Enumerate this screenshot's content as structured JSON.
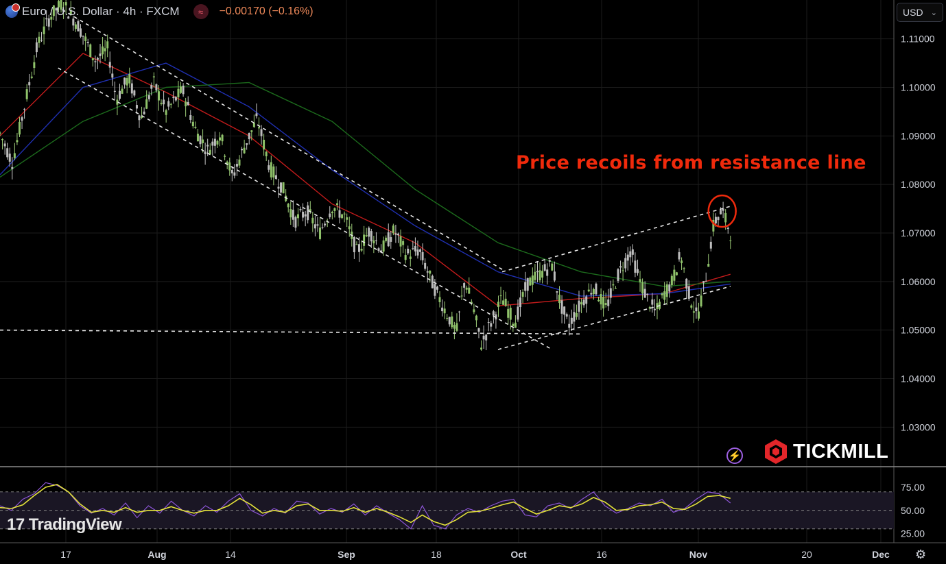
{
  "header": {
    "symbol": "Euro / U.S. Dollar · 4h · FXCM",
    "change": "−0.00170 (−0.16%)"
  },
  "currency_select": {
    "value": "USD"
  },
  "annotation": "Price recoils from resistance line",
  "branding": {
    "tradingview": "TradingView",
    "broker": "TICKMILL"
  },
  "chart_data": {
    "type": "candlestick",
    "symbol": "EUR/USD",
    "timeframe": "4h",
    "price_axis": {
      "ticks": [
        "1.11000",
        "1.10000",
        "1.09000",
        "1.08000",
        "1.07000",
        "1.06000",
        "1.05000",
        "1.04000",
        "1.03000"
      ],
      "range": [
        1.022,
        1.118
      ]
    },
    "time_axis": {
      "labels": [
        "17",
        "Aug",
        "14",
        "Sep",
        "18",
        "Oct",
        "16",
        "Nov",
        "20",
        "Dec"
      ],
      "bold": [
        "Aug",
        "Sep",
        "Oct",
        "Nov",
        "Dec"
      ]
    },
    "price_path": [
      {
        "t": 0,
        "p": 1.0905
      },
      {
        "t": 0.03,
        "p": 1.0845
      },
      {
        "t": 0.06,
        "p": 1.0965
      },
      {
        "t": 0.09,
        "p": 1.1085
      },
      {
        "t": 0.12,
        "p": 1.1145
      },
      {
        "t": 0.15,
        "p": 1.1175
      },
      {
        "t": 0.19,
        "p": 1.1125
      },
      {
        "t": 0.23,
        "p": 1.1055
      },
      {
        "t": 0.26,
        "p": 1.108
      },
      {
        "t": 0.28,
        "p": 1.0975
      },
      {
        "t": 0.31,
        "p": 1.102
      },
      {
        "t": 0.34,
        "p": 1.0935
      },
      {
        "t": 0.37,
        "p": 1.101
      },
      {
        "t": 0.4,
        "p": 1.095
      },
      {
        "t": 0.44,
        "p": 1.0995
      },
      {
        "t": 0.47,
        "p": 1.0915
      },
      {
        "t": 0.5,
        "p": 1.087
      },
      {
        "t": 0.53,
        "p": 1.0905
      },
      {
        "t": 0.56,
        "p": 1.0815
      },
      {
        "t": 0.59,
        "p": 1.088
      },
      {
        "t": 0.62,
        "p": 1.0935
      },
      {
        "t": 0.65,
        "p": 1.0835
      },
      {
        "t": 0.68,
        "p": 1.0795
      },
      {
        "t": 0.71,
        "p": 1.0725
      },
      {
        "t": 0.74,
        "p": 1.0745
      },
      {
        "t": 0.77,
        "p": 1.07
      },
      {
        "t": 0.8,
        "p": 1.0755
      },
      {
        "t": 0.83,
        "p": 1.0735
      },
      {
        "t": 0.86,
        "p": 1.066
      },
      {
        "t": 0.89,
        "p": 1.0705
      },
      {
        "t": 0.92,
        "p": 1.0665
      },
      {
        "t": 0.95,
        "p": 1.0705
      },
      {
        "t": 0.98,
        "p": 1.0655
      },
      {
        "t": 1.01,
        "p": 1.0665
      },
      {
        "t": 1.04,
        "p": 1.06
      },
      {
        "t": 1.07,
        "p": 1.0545
      },
      {
        "t": 1.1,
        "p": 1.0495
      },
      {
        "t": 1.12,
        "p": 1.0605
      },
      {
        "t": 1.14,
        "p": 1.0545
      },
      {
        "t": 1.16,
        "p": 1.047
      },
      {
        "t": 1.18,
        "p": 1.051
      },
      {
        "t": 1.21,
        "p": 1.0565
      },
      {
        "t": 1.24,
        "p": 1.0515
      },
      {
        "t": 1.27,
        "p": 1.0595
      },
      {
        "t": 1.3,
        "p": 1.0615
      },
      {
        "t": 1.33,
        "p": 1.0635
      },
      {
        "t": 1.35,
        "p": 1.0555
      },
      {
        "t": 1.37,
        "p": 1.051
      },
      {
        "t": 1.4,
        "p": 1.0555
      },
      {
        "t": 1.43,
        "p": 1.059
      },
      {
        "t": 1.46,
        "p": 1.0545
      },
      {
        "t": 1.49,
        "p": 1.0615
      },
      {
        "t": 1.52,
        "p": 1.0665
      },
      {
        "t": 1.54,
        "p": 1.0605
      },
      {
        "t": 1.56,
        "p": 1.0565
      },
      {
        "t": 1.58,
        "p": 1.0535
      },
      {
        "t": 1.6,
        "p": 1.0575
      },
      {
        "t": 1.62,
        "p": 1.06
      },
      {
        "t": 1.64,
        "p": 1.0655
      },
      {
        "t": 1.66,
        "p": 1.0575
      },
      {
        "t": 1.68,
        "p": 1.0525
      },
      {
        "t": 1.7,
        "p": 1.0605
      },
      {
        "t": 1.72,
        "p": 1.072
      },
      {
        "t": 1.74,
        "p": 1.0745
      },
      {
        "t": 1.76,
        "p": 1.07
      }
    ],
    "indicators": {
      "ma_fast": {
        "color": "#c21b1b",
        "path": [
          [
            0,
            1.09
          ],
          [
            0.2,
            1.107
          ],
          [
            0.4,
            1.099
          ],
          [
            0.6,
            1.09
          ],
          [
            0.8,
            1.076
          ],
          [
            1.0,
            1.068
          ],
          [
            1.2,
            1.055
          ],
          [
            1.4,
            1.0565
          ],
          [
            1.6,
            1.0575
          ],
          [
            1.76,
            1.0615
          ]
        ]
      },
      "ma_mid": {
        "color": "#1f2fb0",
        "path": [
          [
            0,
            1.082
          ],
          [
            0.2,
            1.1
          ],
          [
            0.4,
            1.105
          ],
          [
            0.6,
            1.096
          ],
          [
            0.8,
            1.083
          ],
          [
            1.0,
            1.0715
          ],
          [
            1.2,
            1.062
          ],
          [
            1.4,
            1.057
          ],
          [
            1.6,
            1.0575
          ],
          [
            1.76,
            1.0595
          ]
        ]
      },
      "ma_slow": {
        "color": "#1c6b1c",
        "path": [
          [
            0,
            1.0815
          ],
          [
            0.2,
            1.093
          ],
          [
            0.4,
            1.1
          ],
          [
            0.6,
            1.101
          ],
          [
            0.8,
            1.093
          ],
          [
            1.0,
            1.079
          ],
          [
            1.2,
            1.068
          ],
          [
            1.4,
            1.062
          ],
          [
            1.6,
            1.059
          ],
          [
            1.76,
            1.06
          ]
        ]
      }
    },
    "trendlines": [
      {
        "from": [
          0.15,
          1.116
        ],
        "to": [
          1.21,
          1.0625
        ],
        "label": "down channel upper"
      },
      {
        "from": [
          0.14,
          1.104
        ],
        "to": [
          1.33,
          1.046
        ],
        "label": "down channel lower"
      },
      {
        "from": [
          0,
          1.05
        ],
        "to": [
          1.4,
          1.0492
        ],
        "label": "horizontal support"
      },
      {
        "from": [
          1.2,
          1.046
        ],
        "to": [
          1.76,
          1.059
        ],
        "label": "up channel lower"
      },
      {
        "from": [
          1.21,
          1.062
        ],
        "to": [
          1.76,
          1.0755
        ],
        "label": "up channel upper"
      }
    ],
    "highlight": {
      "t": 1.74,
      "p": 1.0745,
      "color": "#f02a0c"
    },
    "oscillator": {
      "ticks": [
        "75.00",
        "50.00",
        "25.00"
      ],
      "range": [
        15,
        95
      ],
      "band": [
        30,
        70
      ],
      "rsi": [
        55,
        50,
        62,
        68,
        80,
        77,
        70,
        55,
        47,
        52,
        45,
        58,
        42,
        55,
        47,
        60,
        50,
        44,
        55,
        48,
        60,
        68,
        50,
        44,
        52,
        47,
        60,
        58,
        46,
        52,
        48,
        57,
        45,
        55,
        47,
        40,
        30,
        55,
        34,
        30,
        45,
        52,
        48,
        55,
        60,
        62,
        45,
        43,
        55,
        58,
        52,
        62,
        70,
        55,
        47,
        52,
        58,
        55,
        62,
        48,
        52,
        62,
        70,
        68,
        58
      ],
      "signal": [
        53,
        52,
        56,
        66,
        75,
        78,
        70,
        57,
        48,
        50,
        48,
        53,
        48,
        50,
        50,
        54,
        50,
        47,
        50,
        50,
        55,
        63,
        56,
        47,
        50,
        48,
        55,
        57,
        50,
        50,
        49,
        53,
        48,
        52,
        48,
        43,
        37,
        45,
        38,
        34,
        40,
        48,
        49,
        52,
        56,
        59,
        52,
        46,
        50,
        55,
        53,
        57,
        64,
        59,
        50,
        51,
        55,
        56,
        59,
        52,
        51,
        57,
        65,
        66,
        63
      ]
    }
  }
}
